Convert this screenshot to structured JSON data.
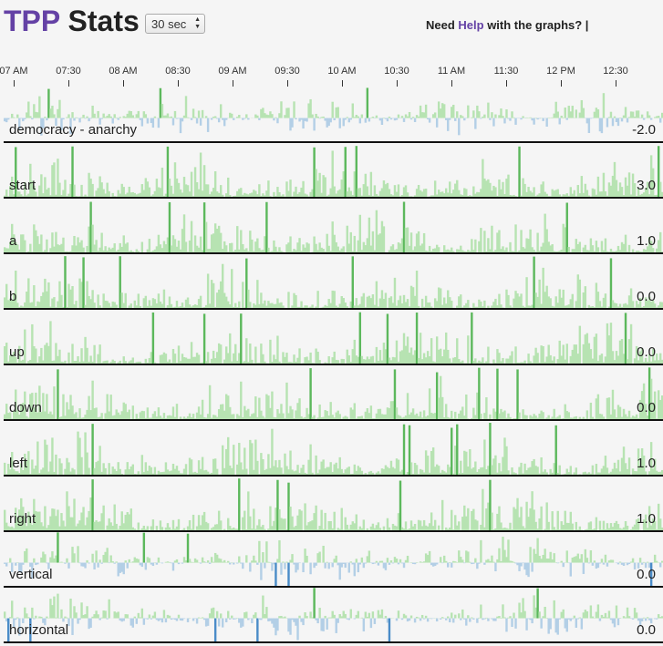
{
  "header": {
    "title_primary": "TPP",
    "title_secondary": "Stats",
    "interval_value": "30 sec",
    "help_prefix": "Need ",
    "help_link": "Help",
    "help_suffix": " with the graphs? |"
  },
  "colors": {
    "accent": "#6441a5",
    "positive_fill": "#b7e3b2",
    "positive_spike": "#5cb85c",
    "negative_fill": "#b3cfe6",
    "negative_spike": "#4a8cc8"
  },
  "chart_data": {
    "type": "area",
    "xlabel": "",
    "ylabel": "",
    "x_ticks": [
      "07 AM",
      "07:30",
      "08 AM",
      "08:30",
      "09 AM",
      "09:30",
      "10 AM",
      "10:30",
      "11 AM",
      "11:30",
      "12 PM",
      "12:30"
    ],
    "series": [
      {
        "name": "democracy - anarchy",
        "current": "-2.0",
        "signed": true
      },
      {
        "name": "start",
        "current": "3.0",
        "signed": false
      },
      {
        "name": "a",
        "current": "1.0",
        "signed": false
      },
      {
        "name": "b",
        "current": "0.0",
        "signed": false
      },
      {
        "name": "up",
        "current": "0.0",
        "signed": false
      },
      {
        "name": "down",
        "current": "0.0",
        "signed": false
      },
      {
        "name": "left",
        "current": "1.0",
        "signed": false
      },
      {
        "name": "right",
        "current": "1.0",
        "signed": false
      },
      {
        "name": "vertical",
        "current": "0.0",
        "signed": true
      },
      {
        "name": "horizontal",
        "current": "0.0",
        "signed": true
      }
    ]
  }
}
